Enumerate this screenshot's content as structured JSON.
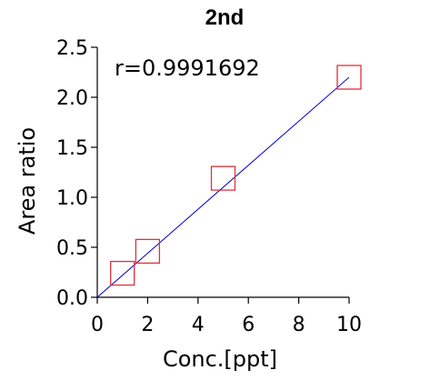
{
  "chart_data": {
    "type": "scatter",
    "title": "2nd",
    "xlabel": "Conc.[ppt]",
    "ylabel": "Area ratio",
    "xlim": [
      0,
      10
    ],
    "ylim": [
      0,
      2.5
    ],
    "xticks": [
      0,
      2,
      4,
      6,
      8,
      10
    ],
    "yticks": [
      0.0,
      0.5,
      1.0,
      1.5,
      2.0,
      2.5
    ],
    "ytick_labels": [
      "0.0",
      "0.5",
      "1.0",
      "1.5",
      "2.0",
      "2.5"
    ],
    "xtick_labels": [
      "0",
      "2",
      "4",
      "6",
      "8",
      "10"
    ],
    "series": [
      {
        "x": [
          1,
          2,
          5,
          10
        ],
        "y": [
          0.24,
          0.46,
          1.19,
          2.2
        ],
        "marker": "open-square",
        "color": "#e0303a"
      }
    ],
    "fit_line": {
      "x": [
        0,
        10
      ],
      "y": [
        0.0,
        2.2
      ],
      "color": "#0000cc"
    },
    "annotation": "r=0.9991692",
    "grid": false
  }
}
